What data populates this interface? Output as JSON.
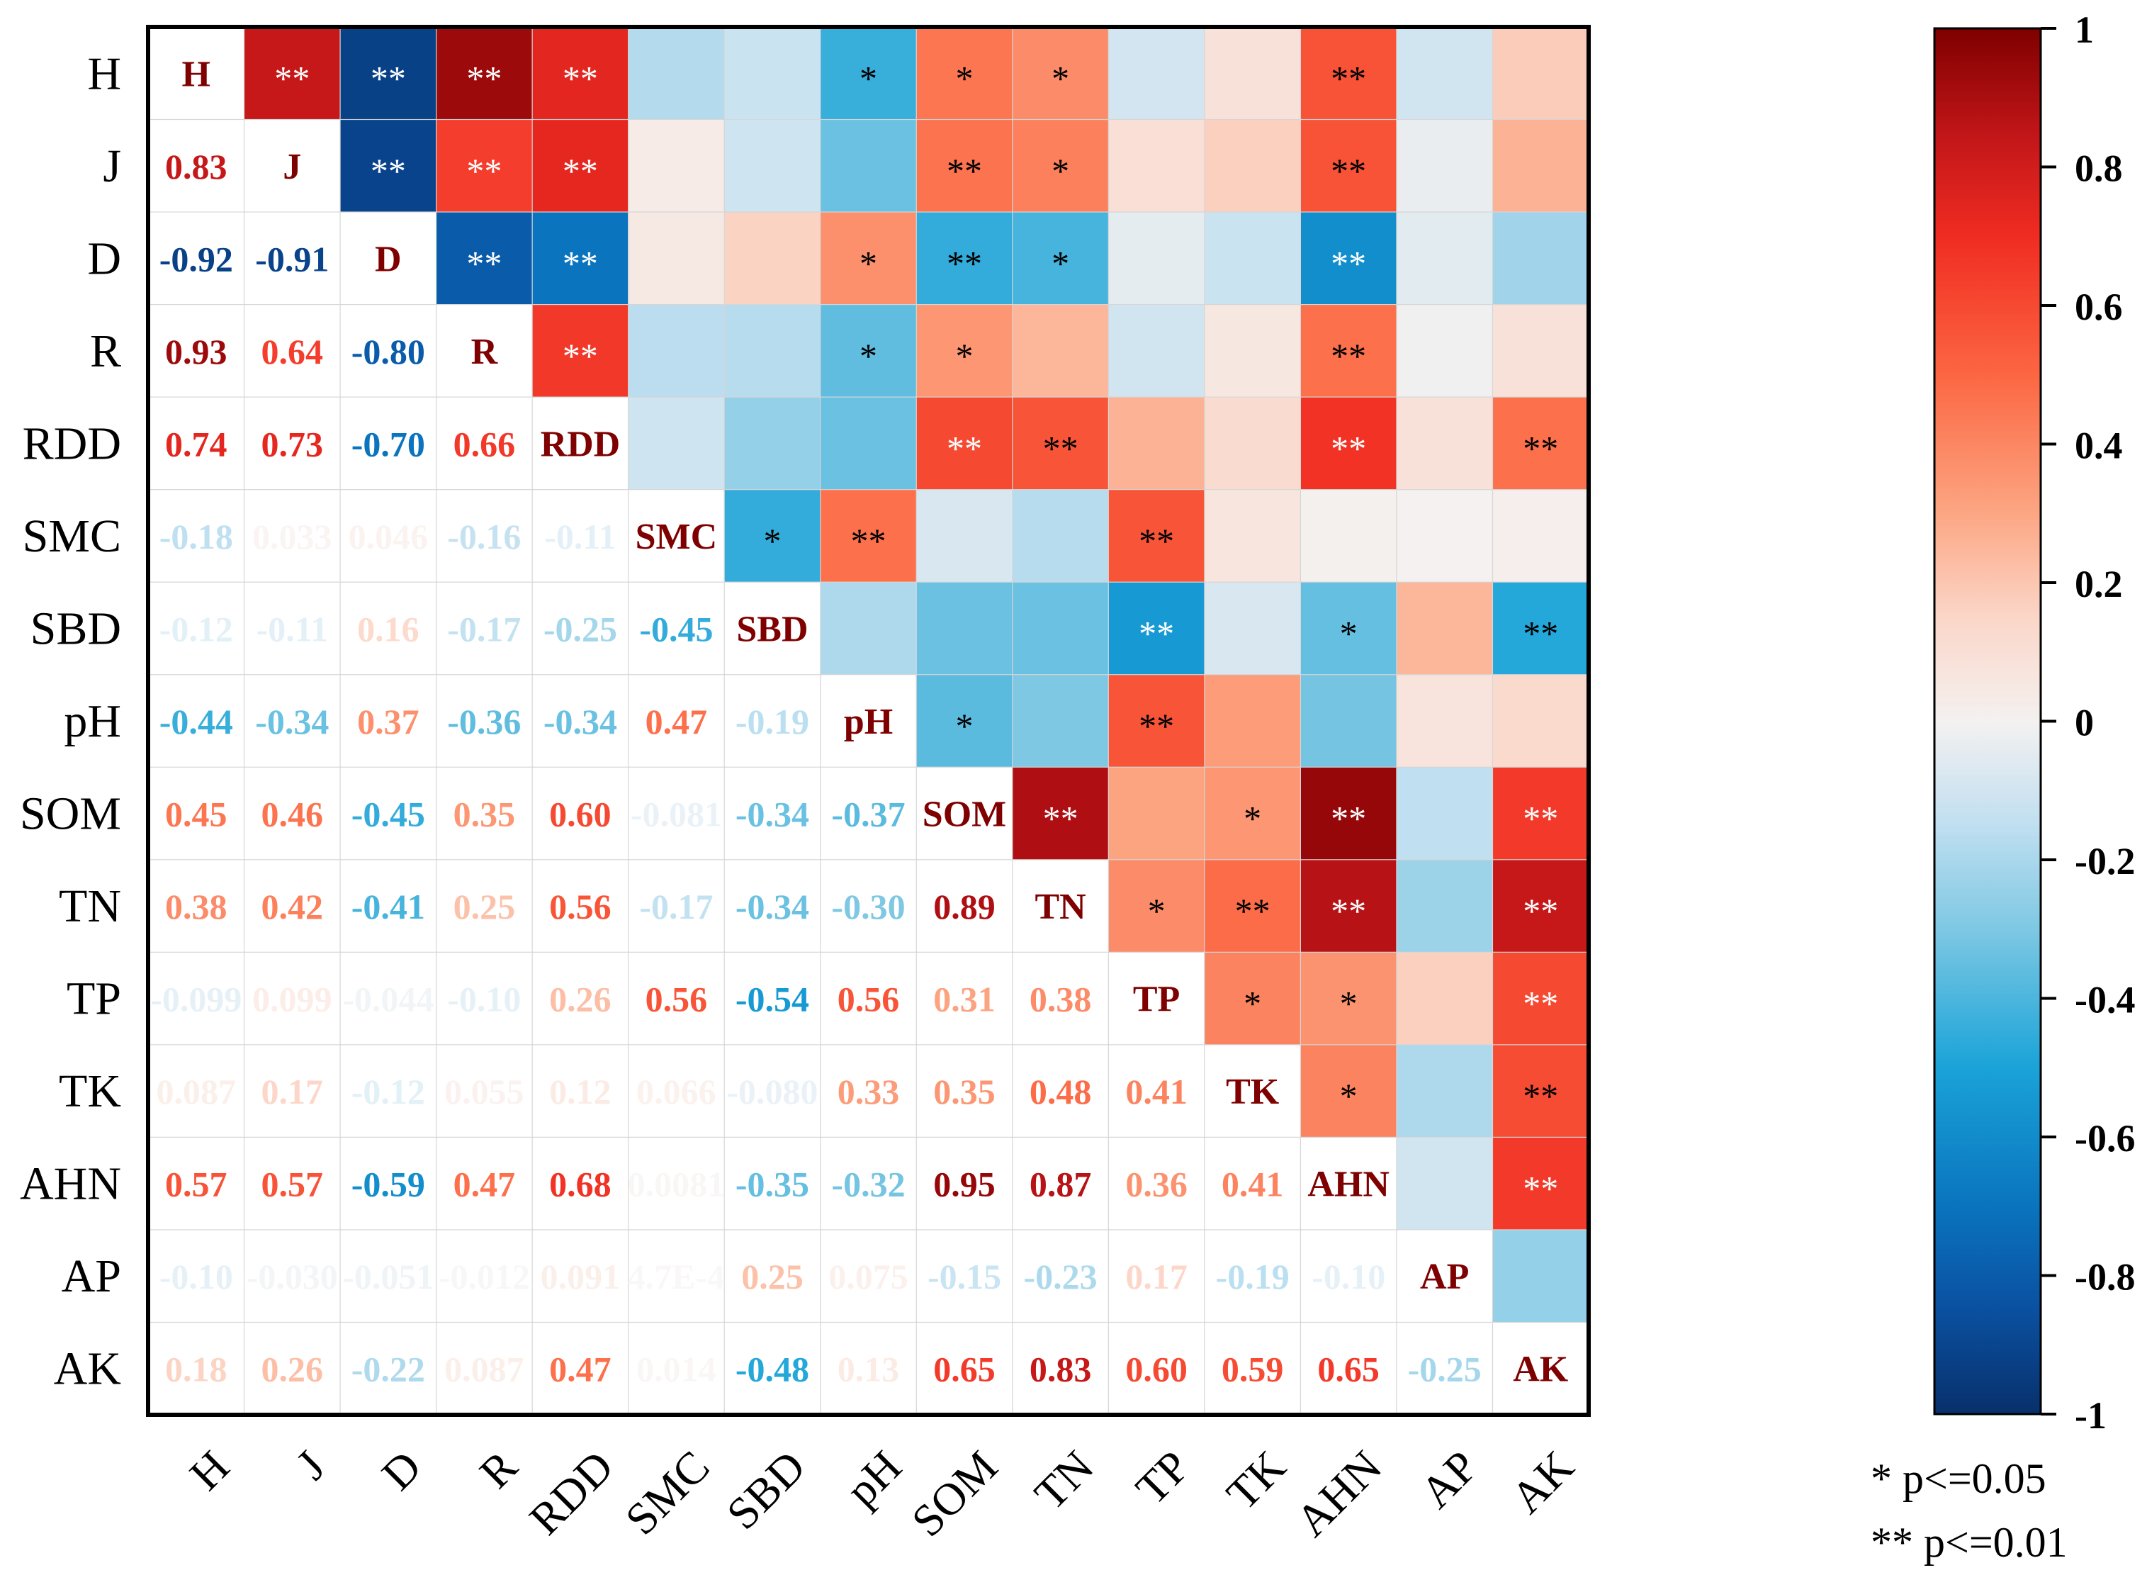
{
  "chart_data": {
    "type": "heatmap",
    "title": "",
    "variables": [
      "H",
      "J",
      "D",
      "R",
      "RDD",
      "SMC",
      "SBD",
      "pH",
      "SOM",
      "TN",
      "TP",
      "TK",
      "AHN",
      "AP",
      "AK"
    ],
    "lower_labels": [
      [],
      [
        "0.83"
      ],
      [
        "-0.92",
        "-0.91"
      ],
      [
        "0.93",
        "0.64",
        "-0.80"
      ],
      [
        "0.74",
        "0.73",
        "-0.70",
        "0.66"
      ],
      [
        "-0.18",
        "0.033",
        "0.046",
        "-0.16",
        "-0.11"
      ],
      [
        "-0.12",
        "-0.11",
        "0.16",
        "-0.17",
        "-0.25",
        "-0.45"
      ],
      [
        "-0.44",
        "-0.34",
        "0.37",
        "-0.36",
        "-0.34",
        "0.47",
        "-0.19"
      ],
      [
        "0.45",
        "0.46",
        "-0.45",
        "0.35",
        "0.60",
        "-0.081",
        "-0.34",
        "-0.37"
      ],
      [
        "0.38",
        "0.42",
        "-0.41",
        "0.25",
        "0.56",
        "-0.17",
        "-0.34",
        "-0.30",
        "0.89"
      ],
      [
        "-0.099",
        "0.099",
        "-0.044",
        "-0.10",
        "0.26",
        "0.56",
        "-0.54",
        "0.56",
        "0.31",
        "0.38"
      ],
      [
        "0.087",
        "0.17",
        "-0.12",
        "0.055",
        "0.12",
        "0.066",
        "-0.080",
        "0.33",
        "0.35",
        "0.48",
        "0.41"
      ],
      [
        "0.57",
        "0.57",
        "-0.59",
        "0.47",
        "0.68",
        "0.0081",
        "-0.35",
        "-0.32",
        "0.95",
        "0.87",
        "0.36",
        "0.41"
      ],
      [
        "-0.10",
        "-0.030",
        "-0.051",
        "-0.012",
        "0.091",
        "4.7E-4",
        "0.25",
        "0.075",
        "-0.15",
        "-0.23",
        "0.17",
        "-0.19",
        "-0.10"
      ],
      [
        "0.18",
        "0.26",
        "-0.22",
        "0.087",
        "0.47",
        "0.014",
        "-0.48",
        "0.13",
        "0.65",
        "0.83",
        "0.60",
        "0.59",
        "0.65",
        "-0.25"
      ]
    ],
    "upper_values": [
      [
        null,
        0.83,
        -0.92,
        0.93,
        0.74,
        -0.18,
        -0.12,
        -0.44,
        0.45,
        0.38,
        -0.099,
        0.087,
        0.57,
        -0.1,
        0.18
      ],
      [
        null,
        null,
        -0.91,
        0.64,
        0.73,
        0.033,
        -0.11,
        -0.34,
        0.46,
        0.42,
        0.099,
        0.17,
        0.57,
        -0.03,
        0.26
      ],
      [
        null,
        null,
        null,
        -0.8,
        -0.7,
        0.046,
        0.16,
        0.37,
        -0.45,
        -0.41,
        -0.044,
        -0.12,
        -0.59,
        -0.051,
        -0.22
      ],
      [
        null,
        null,
        null,
        null,
        0.66,
        -0.16,
        -0.17,
        -0.36,
        0.35,
        0.25,
        -0.1,
        0.055,
        0.47,
        -0.012,
        0.087
      ],
      [
        null,
        null,
        null,
        null,
        null,
        -0.11,
        -0.25,
        -0.34,
        0.6,
        0.56,
        0.26,
        0.12,
        0.68,
        0.091,
        0.47
      ],
      [
        null,
        null,
        null,
        null,
        null,
        null,
        -0.45,
        0.47,
        -0.081,
        -0.17,
        0.56,
        0.066,
        0.0081,
        0.00047,
        0.014
      ],
      [
        null,
        null,
        null,
        null,
        null,
        null,
        null,
        -0.19,
        -0.34,
        -0.34,
        -0.54,
        -0.08,
        -0.35,
        0.25,
        -0.48
      ],
      [
        null,
        null,
        null,
        null,
        null,
        null,
        null,
        null,
        -0.37,
        -0.3,
        0.56,
        0.33,
        -0.32,
        0.075,
        0.13
      ],
      [
        null,
        null,
        null,
        null,
        null,
        null,
        null,
        null,
        null,
        0.89,
        0.31,
        0.35,
        0.95,
        -0.15,
        0.65
      ],
      [
        null,
        null,
        null,
        null,
        null,
        null,
        null,
        null,
        null,
        null,
        0.38,
        0.48,
        0.87,
        -0.23,
        0.83
      ],
      [
        null,
        null,
        null,
        null,
        null,
        null,
        null,
        null,
        null,
        null,
        null,
        0.41,
        0.36,
        0.17,
        0.6
      ],
      [
        null,
        null,
        null,
        null,
        null,
        null,
        null,
        null,
        null,
        null,
        null,
        null,
        0.41,
        -0.19,
        0.59
      ],
      [
        null,
        null,
        null,
        null,
        null,
        null,
        null,
        null,
        null,
        null,
        null,
        null,
        null,
        -0.1,
        0.65
      ],
      [
        null,
        null,
        null,
        null,
        null,
        null,
        null,
        null,
        null,
        null,
        null,
        null,
        null,
        null,
        -0.25
      ],
      [
        null,
        null,
        null,
        null,
        null,
        null,
        null,
        null,
        null,
        null,
        null,
        null,
        null,
        null,
        null
      ]
    ],
    "significance": [
      [
        "",
        "**",
        "**",
        "**",
        "**",
        "",
        "",
        "*",
        "*",
        "*",
        "",
        "",
        "**",
        "",
        ""
      ],
      [
        "",
        "",
        "**",
        "**",
        "**",
        "",
        "",
        "",
        "**",
        "*",
        "",
        "",
        "**",
        "",
        ""
      ],
      [
        "",
        "",
        "",
        "**",
        "**",
        "",
        "",
        "*",
        "**",
        "*",
        "",
        "",
        "**",
        "",
        ""
      ],
      [
        "",
        "",
        "",
        "",
        "**",
        "",
        "",
        "*",
        "*",
        "",
        "",
        "",
        "**",
        "",
        ""
      ],
      [
        "",
        "",
        "",
        "",
        "",
        "",
        "",
        "",
        "**",
        "**",
        "",
        "",
        "**",
        "",
        "**"
      ],
      [
        "",
        "",
        "",
        "",
        "",
        "",
        "*",
        "**",
        "",
        "",
        "**",
        "",
        "",
        "",
        ""
      ],
      [
        "",
        "",
        "",
        "",
        "",
        "",
        "",
        "",
        "",
        "",
        "**",
        "",
        "*",
        "",
        "**"
      ],
      [
        "",
        "",
        "",
        "",
        "",
        "",
        "",
        "",
        "*",
        "",
        "**",
        "",
        "",
        "",
        ""
      ],
      [
        "",
        "",
        "",
        "",
        "",
        "",
        "",
        "",
        "",
        "**",
        "",
        "*",
        "**",
        "",
        "**"
      ],
      [
        "",
        "",
        "",
        "",
        "",
        "",
        "",
        "",
        "",
        "",
        "*",
        "**",
        "**",
        "",
        "**"
      ],
      [
        "",
        "",
        "",
        "",
        "",
        "",
        "",
        "",
        "",
        "",
        "",
        "*",
        "*",
        "",
        "**"
      ],
      [
        "",
        "",
        "",
        "",
        "",
        "",
        "",
        "",
        "",
        "",
        "",
        "",
        "*",
        "",
        "**"
      ],
      [
        "",
        "",
        "",
        "",
        "",
        "",
        "",
        "",
        "",
        "",
        "",
        "",
        "",
        "",
        "**"
      ],
      [
        "",
        "",
        "",
        "",
        "",
        "",
        "",
        "",
        "",
        "",
        "",
        "",
        "",
        "",
        ""
      ],
      [
        "",
        "",
        "",
        "",
        "",
        "",
        "",
        "",
        "",
        "",
        "",
        "",
        "",
        "",
        ""
      ]
    ],
    "colorbar": {
      "range": [
        -1,
        1
      ],
      "ticks": [
        1,
        0.8,
        0.6,
        0.4,
        0.2,
        0,
        -0.2,
        -0.4,
        -0.6,
        -0.8,
        -1
      ],
      "tick_labels": [
        "1",
        "0.8",
        "0.6",
        "0.4",
        "0.2",
        "0",
        "-0.2",
        "-0.4",
        "-0.6",
        "-0.8",
        "-1"
      ],
      "colors": [
        {
          "v": -1.0,
          "c": "#08306b"
        },
        {
          "v": -0.85,
          "c": "#0a50a0"
        },
        {
          "v": -0.7,
          "c": "#0a74be"
        },
        {
          "v": -0.5,
          "c": "#1aa3d8"
        },
        {
          "v": -0.3,
          "c": "#7ec8e3"
        },
        {
          "v": -0.15,
          "c": "#c0dff0"
        },
        {
          "v": 0.0,
          "c": "#f4f1f0"
        },
        {
          "v": 0.15,
          "c": "#fbd6c8"
        },
        {
          "v": 0.3,
          "c": "#fca683"
        },
        {
          "v": 0.5,
          "c": "#fc6642"
        },
        {
          "v": 0.7,
          "c": "#f02c22"
        },
        {
          "v": 0.85,
          "c": "#c01518"
        },
        {
          "v": 1.0,
          "c": "#7f0000"
        }
      ]
    },
    "legend": [
      "* p<=0.05",
      "** p<=0.01"
    ]
  }
}
